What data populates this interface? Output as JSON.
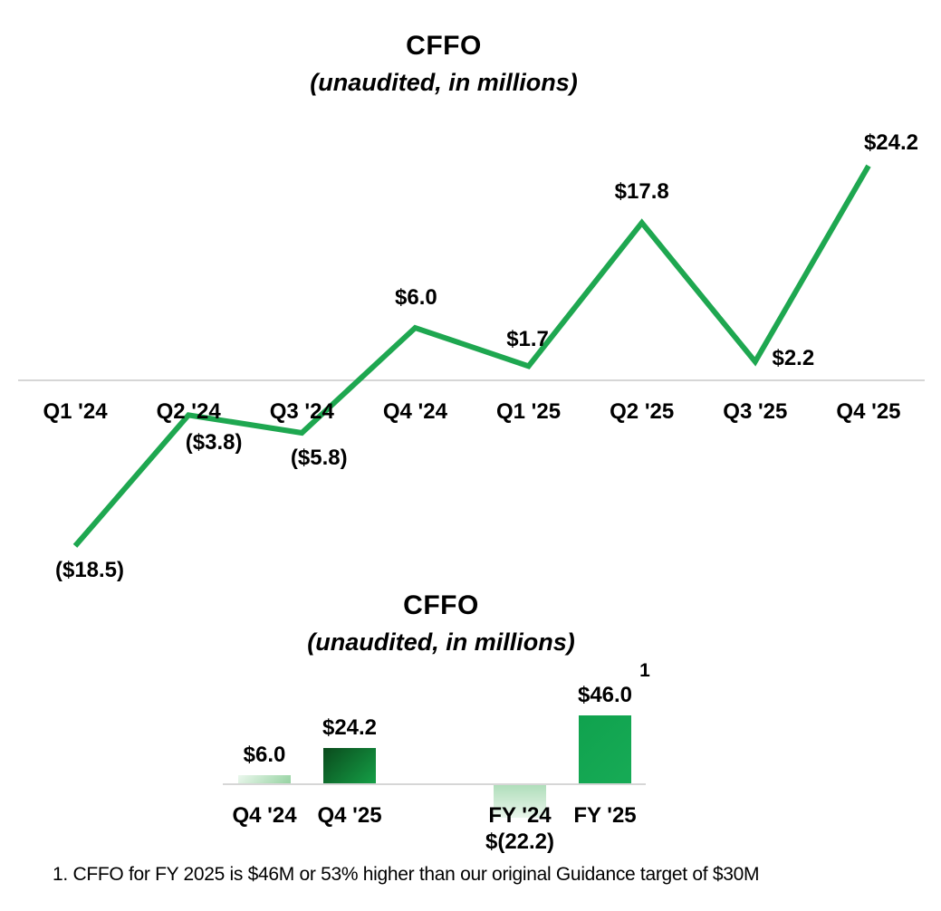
{
  "footnote": "1. CFFO for FY 2025 is $46M or 53% higher than our original Guidance target of $30M",
  "chart_data": [
    {
      "type": "line",
      "title": "CFFO",
      "subtitle": "(unaudited, in millions)",
      "categories": [
        "Q1 '24",
        "Q2 '24",
        "Q3 '24",
        "Q4 '24",
        "Q1 '25",
        "Q2 '25",
        "Q3 '25",
        "Q4 '25"
      ],
      "values": [
        -18.5,
        -3.8,
        -5.8,
        6.0,
        1.7,
        17.8,
        2.2,
        24.2
      ],
      "data_labels": [
        "($18.5)",
        "($3.8)",
        "($5.8)",
        "$6.0",
        "$1.7",
        "$17.8",
        "$2.2",
        "$24.2"
      ],
      "line_color": "#1ea750",
      "axis_color": "#d6d6d6",
      "grid": false,
      "legend": "none",
      "ylim": [
        -20,
        26
      ]
    },
    {
      "type": "bar",
      "title": "CFFO",
      "subtitle": "(unaudited, in millions)",
      "categories": [
        "Q4 '24",
        "Q4 '25",
        "FY '24",
        "FY '25"
      ],
      "values": [
        6.0,
        24.2,
        -22.2,
        46.0
      ],
      "data_labels": [
        "$6.0",
        "$24.2",
        "$(22.2)",
        "$46.0"
      ],
      "footnote_marker": "1",
      "bar_colors": [
        {
          "from": "#ebf7ed",
          "to": "#94d2a0"
        },
        {
          "from": "#0a4a1c",
          "to": "#15a047"
        },
        {
          "from": "#aeddb9",
          "to": "#eaf6ec"
        },
        {
          "from": "#10a24e",
          "to": "#17ab56"
        }
      ],
      "axis_color": "#d6d6d6",
      "grid": false,
      "legend": "none",
      "ylim": [
        -25,
        50
      ]
    }
  ]
}
